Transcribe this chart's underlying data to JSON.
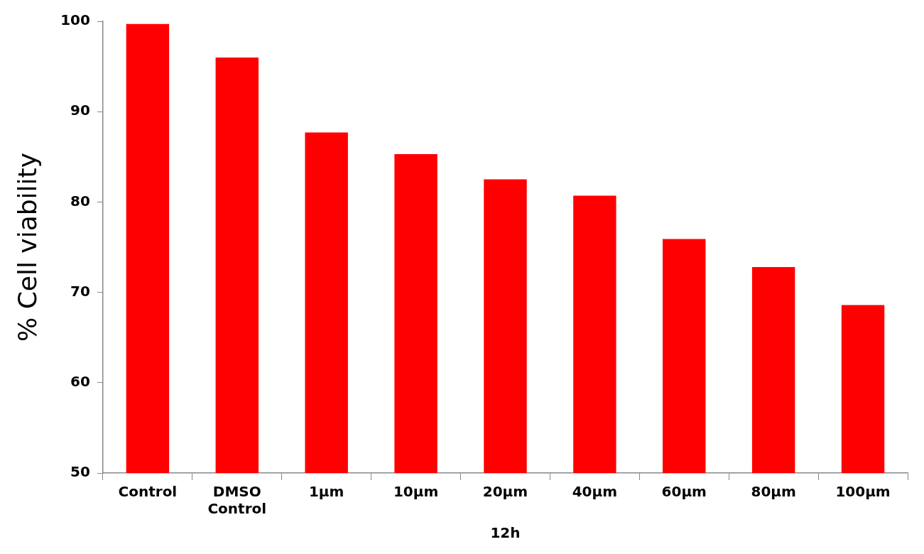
{
  "chart_data": {
    "type": "bar",
    "xlabel": "12h",
    "ylabel": "% Cell viability",
    "categories": [
      "Control",
      "DMSO Control",
      "1µm",
      "10µm",
      "20µm",
      "40µm",
      "60µm",
      "80µm",
      "100µm"
    ],
    "values": [
      99.7,
      96.0,
      87.7,
      85.3,
      82.5,
      80.7,
      75.9,
      72.8,
      68.6
    ],
    "color": "#ff0000",
    "ylim": [
      50,
      100
    ],
    "yticks": [
      50,
      60,
      70,
      80,
      90,
      100
    ],
    "grid": false
  }
}
